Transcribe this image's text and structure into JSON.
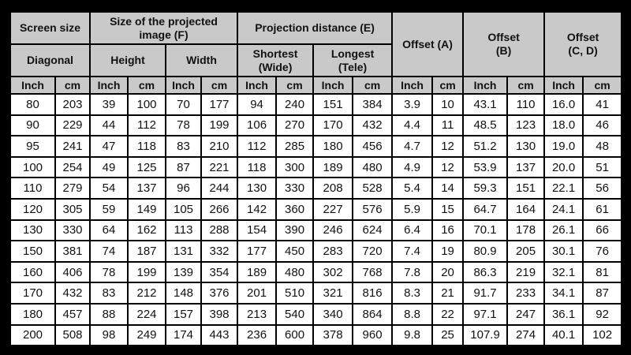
{
  "table": {
    "header_groups": [
      "Screen size",
      "Size of the projected\nimage (F)",
      "Projection distance (E)",
      "Offset (A)",
      "Offset\n(B)",
      "Offset\n(C, D)"
    ],
    "subheaders": [
      "Diagonal",
      "Height",
      "Width",
      "Shortest\n(Wide)",
      "Longest\n(Tele)"
    ],
    "units": [
      "Inch",
      "cm",
      "Inch",
      "cm",
      "Inch",
      "cm",
      "Inch",
      "cm",
      "Inch",
      "cm",
      "Inch",
      "cm",
      "Inch",
      "cm",
      "Inch",
      "cm"
    ],
    "rows": [
      [
        "80",
        "203",
        "39",
        "100",
        "70",
        "177",
        "94",
        "240",
        "151",
        "384",
        "3.9",
        "10",
        "43.1",
        "110",
        "16.0",
        "41"
      ],
      [
        "90",
        "229",
        "44",
        "112",
        "78",
        "199",
        "106",
        "270",
        "170",
        "432",
        "4.4",
        "11",
        "48.5",
        "123",
        "18.0",
        "46"
      ],
      [
        "95",
        "241",
        "47",
        "118",
        "83",
        "210",
        "112",
        "285",
        "180",
        "456",
        "4.7",
        "12",
        "51.2",
        "130",
        "19.0",
        "48"
      ],
      [
        "100",
        "254",
        "49",
        "125",
        "87",
        "221",
        "118",
        "300",
        "189",
        "480",
        "4.9",
        "12",
        "53.9",
        "137",
        "20.0",
        "51"
      ],
      [
        "110",
        "279",
        "54",
        "137",
        "96",
        "244",
        "130",
        "330",
        "208",
        "528",
        "5.4",
        "14",
        "59.3",
        "151",
        "22.1",
        "56"
      ],
      [
        "120",
        "305",
        "59",
        "149",
        "105",
        "266",
        "142",
        "360",
        "227",
        "576",
        "5.9",
        "15",
        "64.7",
        "164",
        "24.1",
        "61"
      ],
      [
        "130",
        "330",
        "64",
        "162",
        "113",
        "288",
        "154",
        "390",
        "246",
        "624",
        "6.4",
        "16",
        "70.1",
        "178",
        "26.1",
        "66"
      ],
      [
        "150",
        "381",
        "74",
        "187",
        "131",
        "332",
        "177",
        "450",
        "283",
        "720",
        "7.4",
        "19",
        "80.9",
        "205",
        "30.1",
        "76"
      ],
      [
        "160",
        "406",
        "78",
        "199",
        "139",
        "354",
        "189",
        "480",
        "302",
        "768",
        "7.8",
        "20",
        "86.3",
        "219",
        "32.1",
        "81"
      ],
      [
        "170",
        "432",
        "83",
        "212",
        "148",
        "376",
        "201",
        "510",
        "321",
        "816",
        "8.3",
        "21",
        "91.7",
        "233",
        "34.1",
        "87"
      ],
      [
        "180",
        "457",
        "88",
        "224",
        "157",
        "398",
        "213",
        "540",
        "340",
        "864",
        "8.8",
        "22",
        "97.1",
        "247",
        "36.1",
        "92"
      ],
      [
        "200",
        "508",
        "98",
        "249",
        "174",
        "443",
        "236",
        "600",
        "378",
        "960",
        "9.8",
        "25",
        "107.9",
        "274",
        "40.1",
        "102"
      ]
    ]
  }
}
